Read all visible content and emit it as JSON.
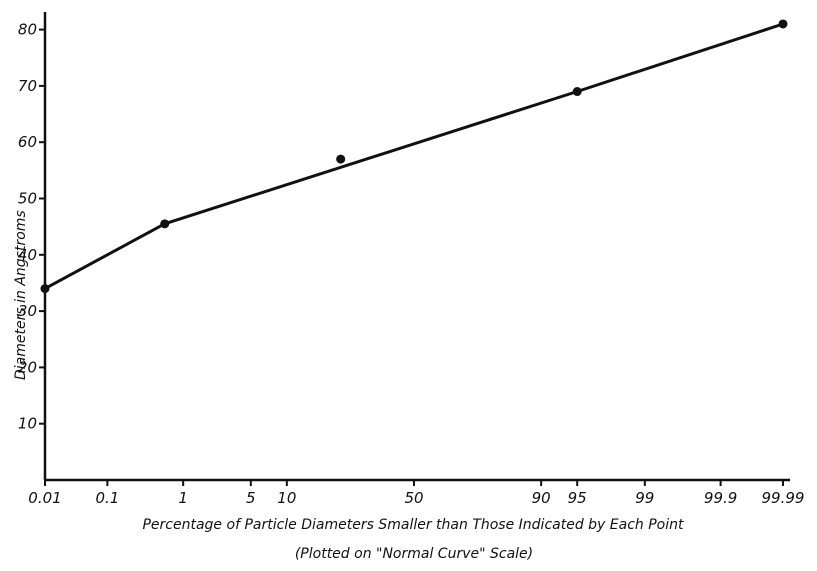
{
  "chart_data": {
    "type": "line",
    "xlabel": "Percentage of Particle Diameters Smaller than Those Indicated by Each Point",
    "xlabel_note": "(Plotted on \"Normal Curve\" Scale)",
    "ylabel": "Diameters in Angstroms",
    "x_scale": "normal-probability",
    "x_ticks": [
      0.01,
      0.1,
      1,
      5,
      10,
      50,
      90,
      95,
      99,
      99.9,
      99.99
    ],
    "x_tick_labels": [
      "0.01",
      "0.1",
      "1",
      "5",
      "10",
      "50",
      "90",
      "95",
      "99",
      "99.9",
      "99.99"
    ],
    "y_ticks": [
      10,
      20,
      30,
      40,
      50,
      60,
      70,
      80
    ],
    "y_tick_labels": [
      "10",
      "20",
      "30",
      "40",
      "50",
      "60",
      "70",
      "80"
    ],
    "ylim": [
      0,
      80
    ],
    "grid": false,
    "points": [
      {
        "x": 0.01,
        "y": 34
      },
      {
        "x": 0.6,
        "y": 45.5
      },
      {
        "x": 23,
        "y": 57
      },
      {
        "x": 95,
        "y": 69
      },
      {
        "x": 99.99,
        "y": 81
      }
    ],
    "line": [
      {
        "x": 0.01,
        "y": 34
      },
      {
        "x": 0.6,
        "y": 45.5
      },
      {
        "x": 95,
        "y": 69
      },
      {
        "x": 99.99,
        "y": 81
      }
    ]
  }
}
